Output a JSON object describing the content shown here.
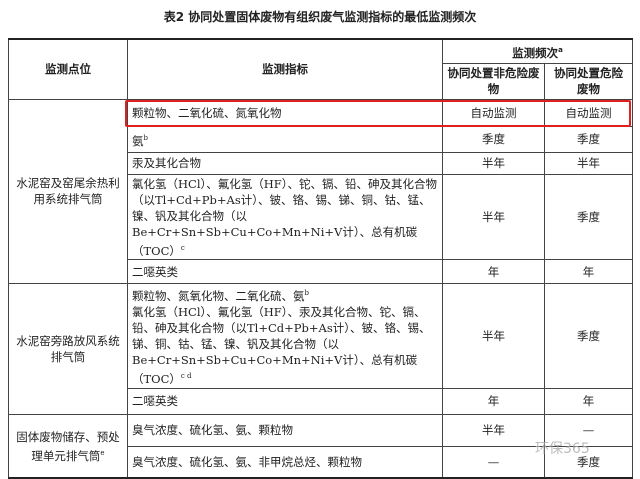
{
  "title": "表2  协同处置固体废物有组织废气监测指标的最低监测频次",
  "header": {
    "location": "监测点位",
    "indicator": "监测指标",
    "frequency": "监测频次",
    "frequency_note": "a",
    "col_nonhaz": "协同处置非危险废物",
    "col_haz": "协同处置危险废物"
  },
  "groups": [
    {
      "location": "水泥窑及窑尾余热利用系统排气筒",
      "rows": [
        {
          "indicator": "颗粒物、二氧化硫、氮氧化物",
          "note": "",
          "nonhaz": "自动监测",
          "haz": "自动监测",
          "highlighted": true
        },
        {
          "indicator": "氨",
          "note": "b",
          "nonhaz": "季度",
          "haz": "季度"
        },
        {
          "indicator": "汞及其化合物",
          "note": "",
          "nonhaz": "半年",
          "haz": "半年"
        },
        {
          "indicator": "氯化氢（HCl）、氟化氢（HF）、铊、镉、铅、砷及其化合物（以Tl+Cd+Pb+As计）、铍、铬、锡、锑、铜、钴、锰、镍、钒及其化合物（以Be+Cr+Sn+Sb+Cu+Co+Mn+Ni+V计）、总有机碳（TOC）",
          "note": "c",
          "nonhaz": "半年",
          "haz": "季度"
        },
        {
          "indicator": "二噁英类",
          "note": "",
          "nonhaz": "年",
          "haz": "年"
        }
      ]
    },
    {
      "location": "水泥窑旁路放风系统排气筒",
      "rows": [
        {
          "indicator_line1": "颗粒物、氮氧化物、二氧化硫、氨",
          "note1": "b",
          "indicator": "氯化氢（HCl）、氟化氢（HF）、汞及其化合物、铊、镉、铅、砷及其化合物（以Tl+Cd+Pb+As计）、铍、铬、锡、锑、铜、钴、锰、镍、钒及其化合物（以Be+Cr+Sn+Sb+Cu+Co+Mn+Ni+V计）、总有机碳（TOC）",
          "note": "c d",
          "nonhaz": "半年",
          "haz": "季度"
        },
        {
          "indicator": "二噁英类",
          "note": "",
          "nonhaz": "年",
          "haz": "年"
        }
      ]
    },
    {
      "location": "固体废物储存、预处理单元排气筒",
      "location_note": "e",
      "rows": [
        {
          "indicator": "臭气浓度、硫化氢、氨、颗粒物",
          "nonhaz": "半年",
          "haz": "—"
        },
        {
          "indicator": "臭气浓度、硫化氢、氨、非甲烷总烃、颗粒物",
          "nonhaz": "—",
          "haz": "季度"
        }
      ]
    }
  ],
  "watermark": "环保365",
  "colors": {
    "highlight": "#e02020"
  }
}
